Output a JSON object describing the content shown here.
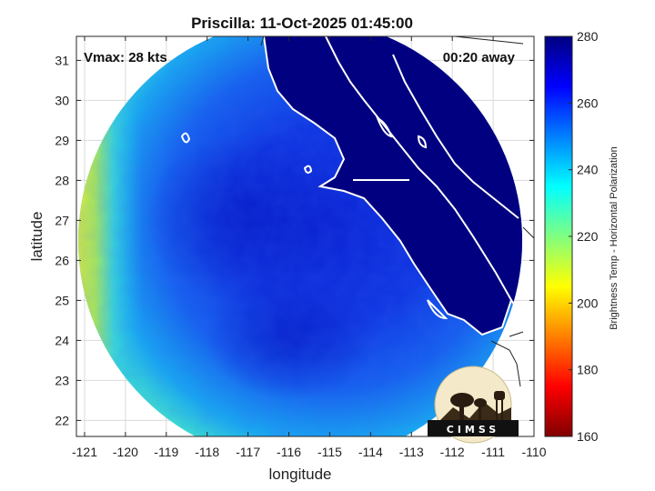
{
  "title": "Priscilla: 11-Oct-2025 01:45:00",
  "xlabel": "longitude",
  "ylabel": "latitude",
  "overlay": {
    "vmax": "Vmax: 28 kts",
    "time_away": "00:20 away"
  },
  "axes": {
    "x_ticks": [
      -121,
      -120,
      -119,
      -118,
      -117,
      -116,
      -115,
      -114,
      -113,
      -112,
      -111,
      -110
    ],
    "y_ticks": [
      22,
      23,
      24,
      25,
      26,
      27,
      28,
      29,
      30,
      31
    ],
    "xlim": [
      -121.2,
      -110
    ],
    "ylim": [
      21.6,
      31.6
    ],
    "grid": true
  },
  "colorbar": {
    "label": "Brightness Temp - Horizontal Polarization",
    "ticks": [
      160,
      180,
      200,
      220,
      240,
      260,
      280
    ],
    "range": [
      160,
      280
    ],
    "colormap": "jet",
    "placement": "right"
  },
  "logo": {
    "text": "CIMSS",
    "name": "cimss-logo"
  },
  "colors": {
    "coast": "#ffffff",
    "land_mask": "#000080",
    "grid": "#d9d9d9"
  },
  "chart_data": {
    "type": "heatmap",
    "title": "Priscilla: 11-Oct-2025 01:45:00",
    "xlabel": "longitude",
    "ylabel": "latitude",
    "xlim": [
      -121.2,
      -110
    ],
    "ylim": [
      21.6,
      31.6
    ],
    "swath_center": [
      -115.6,
      26.4
    ],
    "swath_radius_deg": 5.5,
    "colorbar_range": [
      160,
      280
    ],
    "brightness_temp_regions": [
      {
        "name": "western edge",
        "value": 220
      },
      {
        "name": "west ocean",
        "value": 238
      },
      {
        "name": "central ocean",
        "value": 258
      },
      {
        "name": "center low",
        "value": 265
      },
      {
        "name": "land",
        "value": 278
      }
    ]
  }
}
